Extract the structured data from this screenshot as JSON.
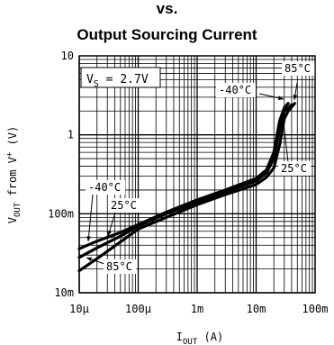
{
  "chart_data": {
    "type": "line",
    "title_line1": "vs.",
    "title_line2": "Output Sourcing Current",
    "xlabel": "I",
    "xlabel_sub": "OUT",
    "xlabel_unit": "(A)",
    "ylabel": "V",
    "ylabel_sub": "OUT",
    "ylabel_rest": "from V",
    "ylabel_sup": "+",
    "ylabel_unit": "(V)",
    "xscale": "log",
    "yscale": "log",
    "xlim": [
      1e-05,
      0.1
    ],
    "ylim": [
      0.01,
      10
    ],
    "grid": true,
    "x_ticks": [
      {
        "value": 1e-05,
        "label": "10μ"
      },
      {
        "value": 0.0001,
        "label": "100μ"
      },
      {
        "value": 0.001,
        "label": "1m"
      },
      {
        "value": 0.01,
        "label": "10m"
      },
      {
        "value": 0.1,
        "label": "100m"
      }
    ],
    "y_ticks": [
      {
        "value": 10,
        "label": "10"
      },
      {
        "value": 1,
        "label": "1"
      },
      {
        "value": 0.1,
        "label": "100m"
      },
      {
        "value": 0.01,
        "label": "10m"
      }
    ],
    "condition_label": "V",
    "condition_sub": "S",
    "condition_value": " = 2.7V",
    "series": [
      {
        "name": "-40°C",
        "x": [
          1e-05,
          2e-05,
          5e-05,
          0.0001,
          0.0003,
          0.001,
          0.003,
          0.01,
          0.015,
          0.02,
          0.025,
          0.03,
          0.035
        ],
        "y": [
          0.036,
          0.045,
          0.058,
          0.073,
          0.105,
          0.15,
          0.2,
          0.28,
          0.36,
          0.6,
          1.5,
          2.2,
          2.5
        ]
      },
      {
        "name": "25°C",
        "x": [
          1e-05,
          2e-05,
          5e-05,
          0.0001,
          0.0003,
          0.001,
          0.003,
          0.01,
          0.015,
          0.02,
          0.025,
          0.03,
          0.04
        ],
        "y": [
          0.028,
          0.037,
          0.052,
          0.07,
          0.1,
          0.14,
          0.19,
          0.26,
          0.33,
          0.5,
          1.2,
          2.0,
          2.4
        ]
      },
      {
        "name": "85°C",
        "x": [
          1e-05,
          2e-05,
          5e-05,
          0.0001,
          0.0003,
          0.001,
          0.003,
          0.01,
          0.015,
          0.02,
          0.025,
          0.03,
          0.035,
          0.045
        ],
        "y": [
          0.019,
          0.027,
          0.044,
          0.064,
          0.09,
          0.13,
          0.175,
          0.235,
          0.29,
          0.38,
          0.75,
          1.6,
          2.0,
          2.5
        ]
      }
    ],
    "annotations": [
      {
        "label": "85°C",
        "series": "85°C",
        "where": "top-right"
      },
      {
        "label": "-40°C",
        "series": "-40°C",
        "where": "top-right"
      },
      {
        "label": "25°C",
        "series": "25°C",
        "where": "right"
      },
      {
        "label": "-40°C",
        "series": "-40°C",
        "where": "bottom-left"
      },
      {
        "label": "25°C",
        "series": "25°C",
        "where": "bottom-left"
      },
      {
        "label": "85°C",
        "series": "85°C",
        "where": "bottom-left"
      }
    ]
  }
}
